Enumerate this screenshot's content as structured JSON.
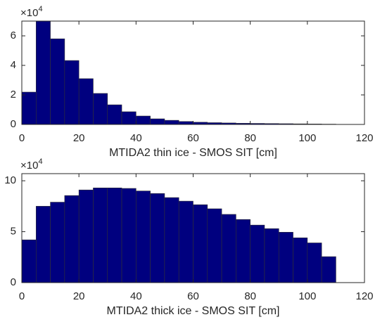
{
  "chart_data": [
    {
      "type": "histogram",
      "x_label": "MTIDA2 thin ice - SMOS SIT [cm]",
      "y_multiplier": {
        "base": "×10",
        "exponent": "4"
      },
      "bins": [
        0,
        5,
        10,
        15,
        20,
        25,
        30,
        35,
        40,
        45,
        50,
        55,
        60,
        65,
        70,
        75,
        80,
        85,
        90,
        95,
        100,
        105,
        110
      ],
      "values": [
        21900,
        70000,
        58000,
        43300,
        31000,
        21000,
        13300,
        8600,
        5700,
        3800,
        2800,
        2000,
        1500,
        1200,
        1000,
        800,
        700,
        600,
        500,
        400,
        300,
        200
      ],
      "color": "#00007f",
      "xlim": [
        0,
        120
      ],
      "xticks": [
        0,
        20,
        40,
        60,
        80,
        100,
        120
      ],
      "ylim": [
        0,
        70000
      ],
      "yticks": [
        {
          "value": 0,
          "label": "0"
        },
        {
          "value": 20000,
          "label": "2"
        },
        {
          "value": 40000,
          "label": "4"
        },
        {
          "value": 60000,
          "label": "6"
        }
      ]
    },
    {
      "type": "histogram",
      "x_label": "MTIDA2 thick ice - SMOS SIT [cm]",
      "y_multiplier": {
        "base": "×10",
        "exponent": "4"
      },
      "bins": [
        0,
        5,
        10,
        15,
        20,
        25,
        30,
        35,
        40,
        45,
        50,
        55,
        60,
        65,
        70,
        75,
        80,
        85,
        90,
        95,
        100,
        105,
        110
      ],
      "values": [
        42000,
        75000,
        79000,
        85500,
        91000,
        93000,
        93000,
        92500,
        90000,
        87500,
        83500,
        80000,
        76500,
        72500,
        67000,
        62000,
        56500,
        53000,
        49500,
        44000,
        39000,
        25500
      ],
      "color": "#00007f",
      "xlim": [
        0,
        120
      ],
      "xticks": [
        0,
        20,
        40,
        60,
        80,
        100,
        120
      ],
      "ylim": [
        0,
        107000
      ],
      "yticks": [
        {
          "value": 0,
          "label": "0"
        },
        {
          "value": 50000,
          "label": "5"
        },
        {
          "value": 100000,
          "label": "10"
        }
      ]
    }
  ]
}
